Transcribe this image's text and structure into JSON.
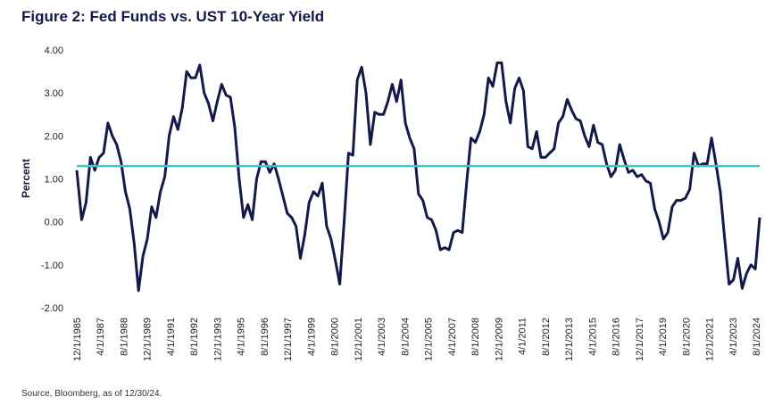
{
  "chart_data": {
    "type": "line",
    "title": "Figure 2: Fed Funds vs. UST 10-Year Yield",
    "ylabel": "Percent",
    "xlabel": "",
    "ylim": [
      -2.0,
      4.0
    ],
    "yticks": [
      "4.00",
      "3.00",
      "2.00",
      "1.00",
      "0.00",
      "-1.00",
      "-2.00"
    ],
    "xticks": [
      "12/1/1985",
      "4/1/1987",
      "8/1/1988",
      "12/1/1989",
      "4/1/1991",
      "8/1/1992",
      "12/1/1993",
      "4/1/1995",
      "8/1/1996",
      "12/1/1997",
      "4/1/1999",
      "8/1/2000",
      "12/1/2001",
      "4/1/2003",
      "8/1/2004",
      "12/1/2005",
      "4/1/2007",
      "8/1/2008",
      "12/1/2009",
      "4/1/2011",
      "8/1/2012",
      "12/1/2013",
      "4/1/2015",
      "8/1/2016",
      "12/1/2017",
      "4/1/2019",
      "8/1/2020",
      "12/1/2021",
      "4/1/2023",
      "8/1/2024"
    ],
    "grid": false,
    "legend": "none",
    "series": [
      {
        "color": "#131a4a",
        "x": [
          1985.92,
          1986.2,
          1986.45,
          1986.7,
          1986.95,
          1987.2,
          1987.45,
          1987.7,
          1987.95,
          1988.2,
          1988.45,
          1988.7,
          1988.95,
          1989.2,
          1989.45,
          1989.7,
          1989.95,
          1990.2,
          1990.45,
          1990.7,
          1990.95,
          1991.2,
          1991.45,
          1991.7,
          1991.95,
          1992.2,
          1992.45,
          1992.7,
          1992.95,
          1993.2,
          1993.45,
          1993.7,
          1993.95,
          1994.2,
          1994.45,
          1994.7,
          1994.95,
          1995.2,
          1995.45,
          1995.7,
          1995.95,
          1996.2,
          1996.45,
          1996.7,
          1996.95,
          1997.2,
          1997.45,
          1997.7,
          1997.95,
          1998.2,
          1998.45,
          1998.7,
          1998.95,
          1999.2,
          1999.45,
          1999.7,
          1999.95,
          2000.2,
          2000.45,
          2000.7,
          2000.95,
          2001.2,
          2001.45,
          2001.7,
          2001.95,
          2002.2,
          2002.45,
          2002.7,
          2002.95,
          2003.2,
          2003.45,
          2003.7,
          2003.95,
          2004.2,
          2004.45,
          2004.7,
          2004.95,
          2005.2,
          2005.45,
          2005.7,
          2005.95,
          2006.2,
          2006.45,
          2006.7,
          2006.95,
          2007.2,
          2007.45,
          2007.7,
          2007.95,
          2008.2,
          2008.45,
          2008.7,
          2008.95,
          2009.2,
          2009.45,
          2009.7,
          2009.95,
          2010.2,
          2010.45,
          2010.7,
          2010.95,
          2011.2,
          2011.45,
          2011.7,
          2011.95,
          2012.2,
          2012.45,
          2012.7,
          2012.95,
          2013.2,
          2013.45,
          2013.7,
          2013.95,
          2014.2,
          2014.45,
          2014.7,
          2014.95,
          2015.2,
          2015.45,
          2015.7,
          2015.95,
          2016.2,
          2016.45,
          2016.7,
          2016.95,
          2017.2,
          2017.45,
          2017.7,
          2017.95,
          2018.2,
          2018.45,
          2018.7,
          2018.95,
          2019.2,
          2019.45,
          2019.7,
          2019.95,
          2020.2,
          2020.45,
          2020.7,
          2020.95,
          2021.2,
          2021.45,
          2021.7,
          2021.95,
          2022.2,
          2022.45,
          2022.7,
          2022.95,
          2023.2,
          2023.45,
          2023.7,
          2023.95,
          2024.2,
          2024.45,
          2024.7,
          2024.95
        ],
        "y": [
          1.2,
          0.05,
          0.45,
          1.5,
          1.2,
          1.5,
          1.6,
          2.3,
          2.0,
          1.8,
          1.4,
          0.7,
          0.3,
          -0.5,
          -1.6,
          -0.8,
          -0.4,
          0.35,
          0.1,
          0.7,
          1.05,
          2.0,
          2.45,
          2.15,
          2.65,
          3.5,
          3.35,
          3.35,
          3.65,
          3.0,
          2.75,
          2.35,
          2.8,
          3.2,
          2.95,
          2.9,
          2.2,
          1.0,
          0.1,
          0.4,
          0.05,
          1.0,
          1.4,
          1.4,
          1.15,
          1.35,
          1.0,
          0.6,
          0.2,
          0.1,
          -0.1,
          -0.85,
          -0.3,
          0.45,
          0.7,
          0.6,
          0.9,
          -0.1,
          -0.4,
          -0.9,
          -1.45,
          0.0,
          1.6,
          1.55,
          3.3,
          3.6,
          3.0,
          1.8,
          2.55,
          2.5,
          2.5,
          2.8,
          3.2,
          2.8,
          3.3,
          2.3,
          1.95,
          1.7,
          0.65,
          0.5,
          0.1,
          0.05,
          -0.2,
          -0.65,
          -0.6,
          -0.65,
          -0.25,
          -0.2,
          -0.25,
          0.9,
          1.95,
          1.85,
          2.1,
          2.5,
          3.35,
          3.15,
          3.7,
          3.7,
          2.8,
          2.3,
          3.1,
          3.35,
          3.05,
          1.75,
          1.7,
          2.1,
          1.5,
          1.5,
          1.6,
          1.7,
          2.3,
          2.45,
          2.85,
          2.6,
          2.4,
          2.35,
          2.0,
          1.75,
          2.25,
          1.85,
          1.8,
          1.35,
          1.05,
          1.2,
          1.8,
          1.45,
          1.15,
          1.2,
          1.05,
          1.1,
          0.95,
          0.9,
          0.3,
          0.0,
          -0.4,
          -0.25,
          0.35,
          0.5,
          0.5,
          0.55,
          0.75,
          1.6,
          1.3,
          1.35,
          1.35,
          1.95,
          1.35,
          0.7,
          -0.4,
          -1.45,
          -1.35,
          -0.85,
          -1.55,
          -1.2,
          -1.0,
          -1.1,
          0.1
        ]
      },
      {
        "color": "#3cc8c8",
        "x": [
          1985.92,
          2024.95
        ],
        "y": [
          1.3,
          1.3
        ]
      }
    ]
  },
  "footer": {
    "source": "Source, Bloomberg, as of 12/30/24."
  }
}
